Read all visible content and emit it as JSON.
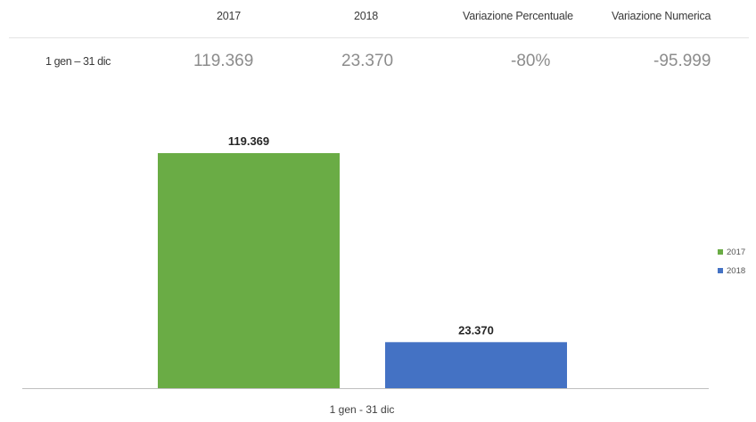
{
  "table": {
    "headers": [
      "2017",
      "2018",
      "Variazione Percentuale",
      "Variazione Numerica"
    ],
    "rows": [
      {
        "label": "1 gen – 31 dic",
        "cells": [
          "119.369",
          "23.370",
          "-80%",
          "-95.999"
        ]
      }
    ]
  },
  "colors": {
    "series_2017": "#6aac45",
    "series_2018": "#4472c4",
    "axis": "#bfbfbf"
  },
  "chart_data": {
    "type": "bar",
    "categories": [
      "1 gen - 31 dic"
    ],
    "series": [
      {
        "name": "2017",
        "values": [
          119369
        ],
        "label": "119.369",
        "color": "#6aac45"
      },
      {
        "name": "2018",
        "values": [
          23370
        ],
        "label": "23.370",
        "color": "#4472c4"
      }
    ],
    "ylim": [
      0,
      119369
    ],
    "grid": false,
    "legend_position": "right"
  }
}
